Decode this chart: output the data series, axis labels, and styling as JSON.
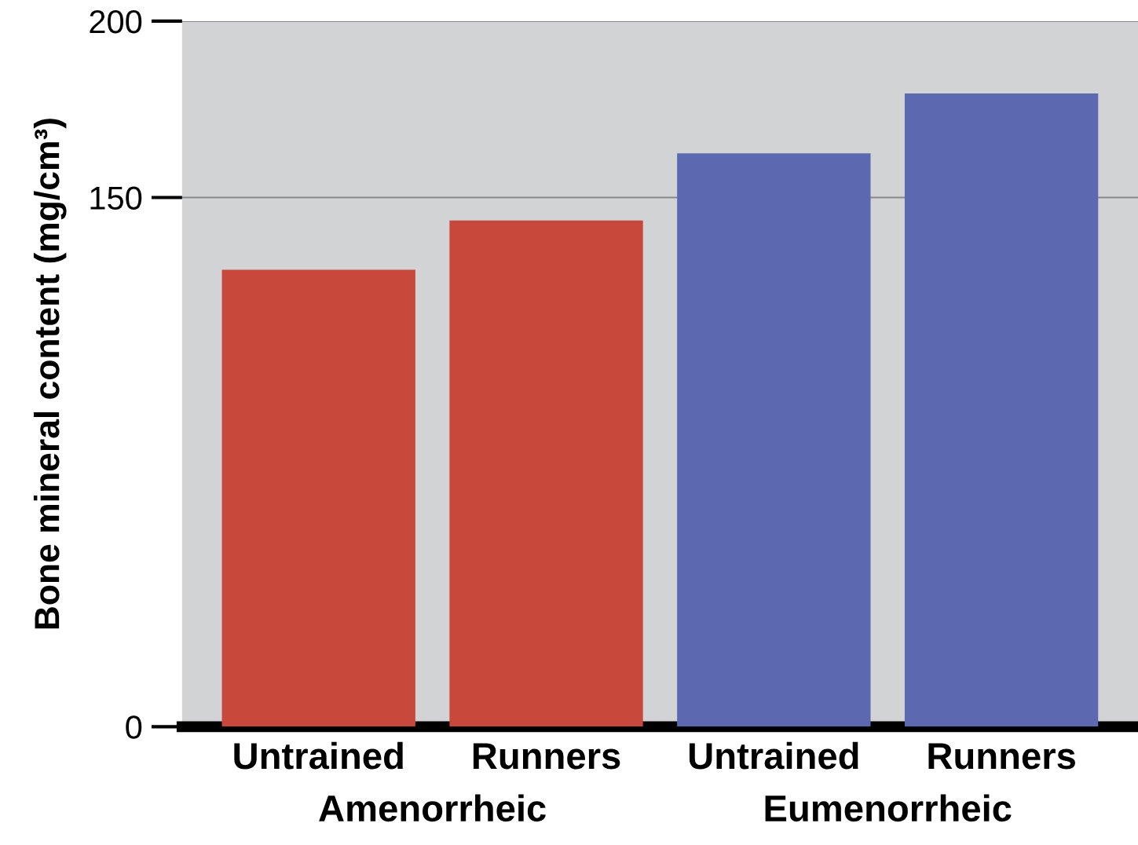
{
  "chart_data": {
    "type": "bar",
    "ylabel": "Bone mineral content (mg/cm³)",
    "categories": [
      "Untrained",
      "Runners",
      "Untrained",
      "Runners"
    ],
    "values": [
      129.5,
      143.5,
      162.5,
      179.5
    ],
    "colors": [
      "#c8493c",
      "#c8493c",
      "#5c68b0",
      "#5c68b0"
    ],
    "ylim": [
      0,
      200
    ],
    "yticks": [
      0,
      150,
      200
    ],
    "grid": "y",
    "annotations": [
      "Amenorrheic",
      "Eumenorrheic"
    ]
  }
}
